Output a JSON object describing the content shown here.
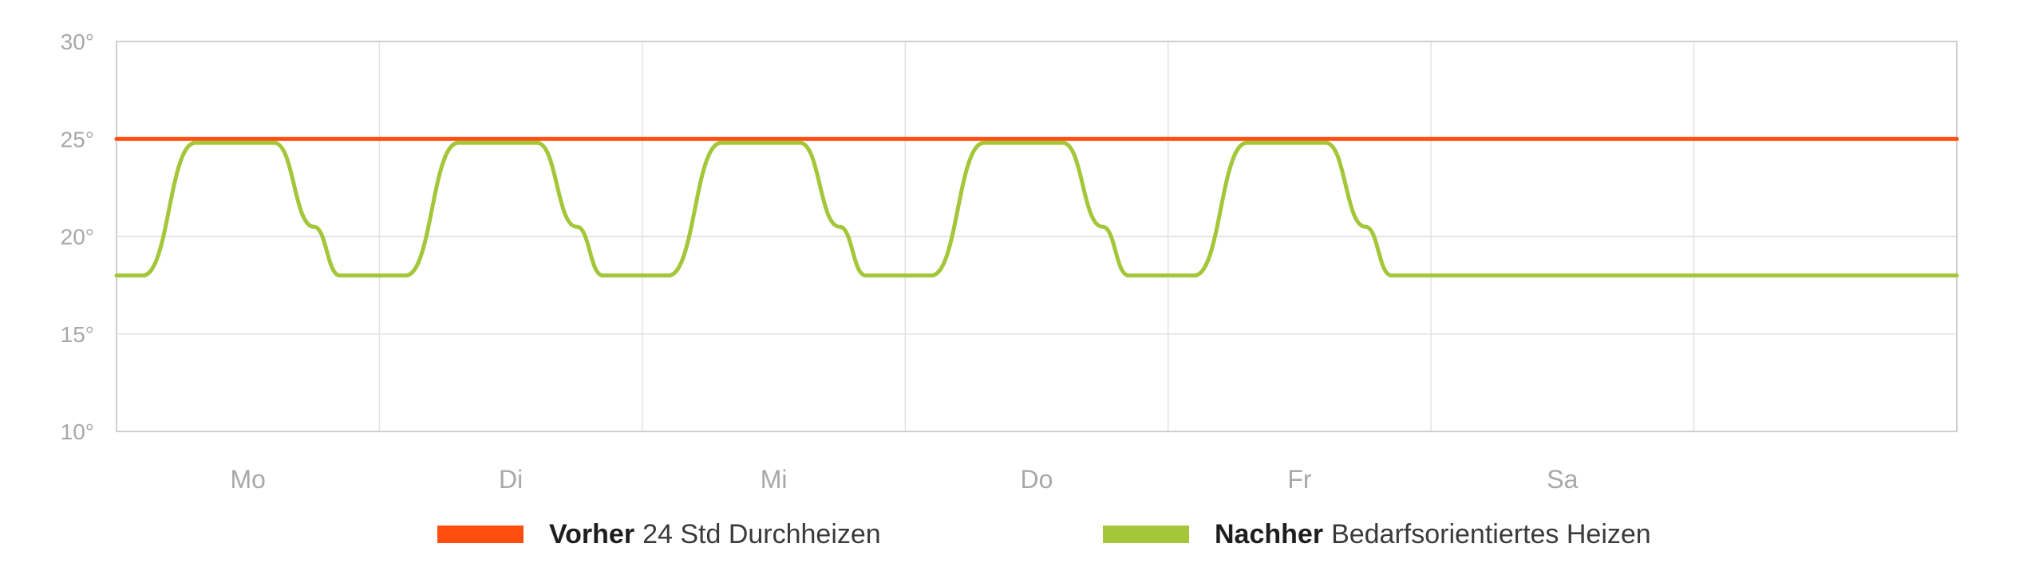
{
  "colors": {
    "before": "#ff4e0f",
    "after": "#a4c639",
    "grid": "#e2e2e2",
    "axis": "#cfcfcf",
    "text": "#a8a8a8"
  },
  "chart_data": {
    "type": "line",
    "ylim": [
      10,
      30
    ],
    "y_ticks": [
      {
        "value": 30,
        "label": "30°"
      },
      {
        "value": 25,
        "label": "25°"
      },
      {
        "value": 20,
        "label": "20°"
      },
      {
        "value": 15,
        "label": "15°"
      },
      {
        "value": 10,
        "label": "10°"
      }
    ],
    "xlim": [
      0,
      7
    ],
    "categories": [
      "Mo",
      "Di",
      "Mi",
      "Do",
      "Fr",
      "Sa",
      ""
    ],
    "series": [
      {
        "name": "Vorher 24 Std Durchheizen",
        "name_bold": "Vorher",
        "name_rest": "24 Std Durchheizen",
        "x": [
          0,
          7
        ],
        "values": [
          25,
          25
        ]
      },
      {
        "name": "Nachher Bedarfsorientiertes Heizen",
        "name_bold": "Nachher",
        "name_rest": "Bedarfsorientiertes Heizen",
        "x": [
          0,
          0.1,
          0.3,
          0.4,
          0.6,
          0.75,
          0.85,
          1.0,
          1.1,
          1.3,
          1.4,
          1.6,
          1.75,
          1.85,
          2.0,
          2.1,
          2.3,
          2.4,
          2.6,
          2.75,
          2.85,
          3.0,
          3.1,
          3.3,
          3.4,
          3.6,
          3.75,
          3.85,
          4.0,
          4.1,
          4.3,
          4.4,
          4.6,
          4.75,
          4.85,
          5.0,
          7.0
        ],
        "values": [
          18,
          18,
          24.8,
          24.8,
          24.8,
          20.5,
          18,
          18,
          18,
          24.8,
          24.8,
          24.8,
          20.5,
          18,
          18,
          18,
          24.8,
          24.8,
          24.8,
          20.5,
          18,
          18,
          18,
          24.8,
          24.8,
          24.8,
          20.5,
          18,
          18,
          18,
          24.8,
          24.8,
          24.8,
          20.5,
          18,
          18,
          18
        ]
      }
    ],
    "grid": true,
    "legend": "bottom"
  }
}
